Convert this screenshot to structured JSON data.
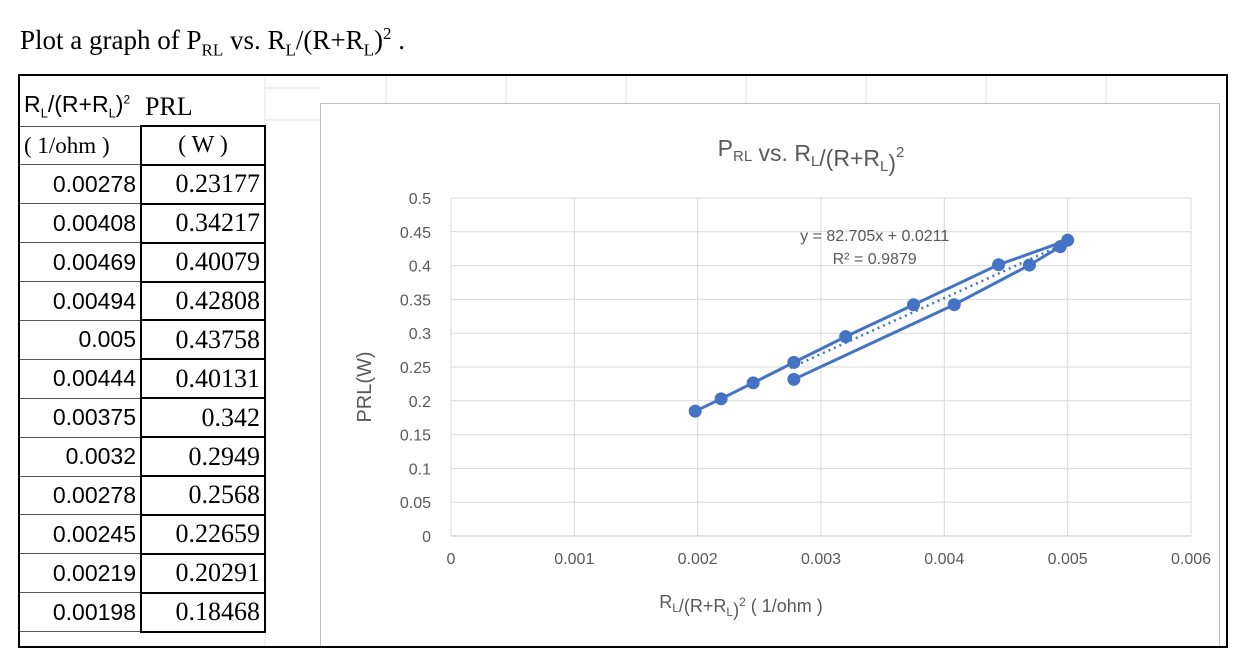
{
  "heading": {
    "prefix": "Plot a graph of P",
    "sub1": "RL",
    "mid": " vs. R",
    "sub2": "L",
    "mid2": "/(R+R",
    "sub3": "L",
    "end": ")",
    "sup": "2",
    "tail": " ."
  },
  "table": {
    "col1_header": "R",
    "col1_header_sub": "L",
    "col1_header_rest": "/(R+R",
    "col1_header_sub2": "L",
    "col1_header_end": ")",
    "col1_header_sup": "2",
    "col2_header": "PRL",
    "col1_unit": "( 1/ohm )",
    "col2_unit": "( W )",
    "rows": [
      [
        "0.00278",
        "0.23177"
      ],
      [
        "0.00408",
        "0.34217"
      ],
      [
        "0.00469",
        "0.40079"
      ],
      [
        "0.00494",
        "0.42808"
      ],
      [
        "0.005",
        "0.43758"
      ],
      [
        "0.00444",
        "0.40131"
      ],
      [
        "0.00375",
        "0.342"
      ],
      [
        "0.0032",
        "0.2949"
      ],
      [
        "0.00278",
        "0.2568"
      ],
      [
        "0.00245",
        "0.22659"
      ],
      [
        "0.00219",
        "0.20291"
      ],
      [
        "0.00198",
        "0.18468"
      ]
    ]
  },
  "chart_data": {
    "type": "scatter",
    "title": "P",
    "title_sub1": "RL",
    "title_mid": " vs. R",
    "title_sub2": "L",
    "title_mid2": "/(R+R",
    "title_sub3": "L",
    "title_end": ")",
    "title_sup": "2",
    "xlabel": "R",
    "xlabel_sub": "L",
    "xlabel_mid": "/(R+R",
    "xlabel_sub2": "L",
    "xlabel_end": ")",
    "xlabel_sup": "2",
    "xlabel_unit": "  ( 1/ohm )",
    "ylabel": "PRL(W)",
    "xlim": [
      0,
      0.006
    ],
    "ylim": [
      0,
      0.5
    ],
    "xticks": [
      "0",
      "0.001",
      "0.002",
      "0.003",
      "0.004",
      "0.005",
      "0.006"
    ],
    "yticks": [
      "0",
      "0.05",
      "0.1",
      "0.15",
      "0.2",
      "0.25",
      "0.3",
      "0.35",
      "0.4",
      "0.45",
      "0.5"
    ],
    "series": [
      {
        "x": [
          0.00278,
          0.00408,
          0.00469,
          0.00494,
          0.005,
          0.00444,
          0.00375,
          0.0032,
          0.00278,
          0.00245,
          0.00219,
          0.00198
        ],
        "y": [
          0.23177,
          0.34217,
          0.40079,
          0.42808,
          0.43758,
          0.40131,
          0.342,
          0.2949,
          0.2568,
          0.22659,
          0.20291,
          0.18468
        ],
        "connected": true
      }
    ],
    "trendline": {
      "type": "linear",
      "slope": 82.705,
      "intercept": 0.0211,
      "equation": "y = 82.705x + 0.0211",
      "r2": "R² = 0.9879"
    },
    "grid": true,
    "color": "#4472c4"
  }
}
